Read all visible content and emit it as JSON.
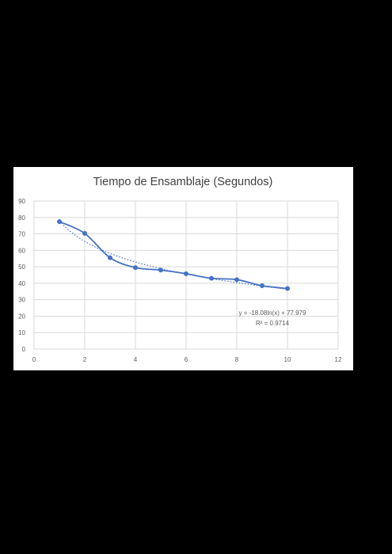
{
  "colors": {
    "background": "#000000",
    "panel": "#ffffff",
    "series": "#4472c4",
    "grid": "#d9d9d9",
    "text": "#595959"
  },
  "chart_data": {
    "type": "scatter",
    "title": "Tiempo de Ensamblaje (Segundos)",
    "xlim": [
      0,
      12
    ],
    "ylim": [
      0,
      90
    ],
    "x_ticks": [
      "0",
      "2",
      "4",
      "6",
      "8",
      "10",
      "12"
    ],
    "y_ticks": [
      "0",
      "10",
      "20",
      "30",
      "40",
      "50",
      "60",
      "70",
      "80",
      "90"
    ],
    "grid": true,
    "series": [
      {
        "style": "smooth line with markers",
        "x": [
          1,
          2,
          3,
          4,
          5,
          6,
          7,
          8,
          9,
          10
        ],
        "y": [
          77.5,
          70.3,
          55.5,
          49.5,
          48,
          45.8,
          43,
          42.2,
          38.5,
          36.8
        ]
      }
    ],
    "trendline": {
      "type": "logarithmic",
      "style": "dotted",
      "a": -18.08,
      "b": 77.979,
      "equation": "y = -18.08ln(x) + 77.979",
      "r_squared": "R² = 0.9714"
    }
  }
}
